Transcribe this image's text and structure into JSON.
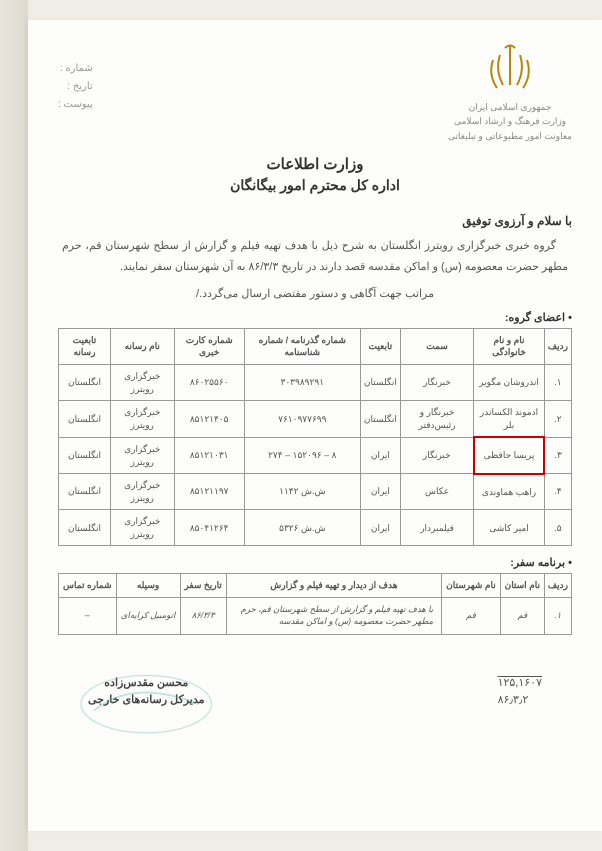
{
  "header": {
    "number_label": "شماره :",
    "date_label": "تاریخ :",
    "attach_label": "پیوست :",
    "country": "جمهوری اسلامی ایران",
    "ministry": "وزارت فرهنگ و ارشاد اسلامی",
    "dept": "معاونت امور مطبوعاتی و تبلیغاتی"
  },
  "title": {
    "line1": "وزارت اطلاعات",
    "line2": "اداره کل محترم امور بیگانگان"
  },
  "greeting": "با سلام و آرزوی توفیق",
  "body": {
    "p1": "گروه خبری خبرگزاری رویترز انگلستان به شرح ذیل با هدف تهیه فیلم و گزارش از سطح شهرستان قم، حرم مطهر حضرت معصومه (س) و اماکن مقدسه قصد دارند در تاریخ ۸۶/۳/۳ به آن شهرستان سفر نمایند.",
    "p2": "مراتب جهت آگاهی و دستور مقتضی ارسال می‌گردد./"
  },
  "section1_label": "• اعضای گروه:",
  "members": {
    "headers": {
      "row": "ردیف",
      "name": "نام و نام خانوادگی",
      "role": "سمت",
      "nationality": "تابعیت",
      "passport": "شماره گذرنامه / شماره شناسنامه",
      "press": "شماره کارت خبری",
      "media": "نام رسانه",
      "media_nat": "تابعیت رسانه"
    },
    "rows": [
      {
        "n": "۱.",
        "name": "اندروشان مگویر",
        "role": "خبرنگار",
        "nat": "انگلستان",
        "pass": "۳۰۳۹۸۹۲۹۱",
        "press": "۸۶۰۲۵۵۶۰",
        "media": "خبرگزاری رویترز",
        "mnat": "انگلستان"
      },
      {
        "n": "۲.",
        "name": "ادموند الکساندر بلر",
        "role": "خبرنگار و رئیس‌دفتر",
        "nat": "انگلستان",
        "pass": "۷۶۱۰۹۷۷۶۹۹",
        "press": "۸۵۱۲۱۴۰۵",
        "media": "خبرگزاری رویترز",
        "mnat": "انگلستان"
      },
      {
        "n": "۳.",
        "name": "پریسا حافظی",
        "role": "خبرنگار",
        "nat": "ایران",
        "pass": "۸ – ۱۵۲۰۹۶ – ۲۷۴",
        "press": "۸۵۱۲۱۰۳۱",
        "media": "خبرگزاری رویترز",
        "mnat": "انگلستان"
      },
      {
        "n": "۴.",
        "name": "راهب هماوندی",
        "role": "عکاس",
        "nat": "ایران",
        "pass": "ش.ش ۱۱۴۲",
        "press": "۸۵۱۲۱۱۹۷",
        "media": "خبرگزاری رویترز",
        "mnat": "انگلستان"
      },
      {
        "n": "۵.",
        "name": "امیر کاشی",
        "role": "فیلمبردار",
        "nat": "ایران",
        "pass": "ش.ش ۵۳۲۶",
        "press": "۸۵۰۴۱۲۶۴",
        "media": "خبرگزاری رویترز",
        "mnat": "انگلستان"
      }
    ]
  },
  "section2_label": "• برنامه سفر:",
  "trip": {
    "headers": {
      "row": "ردیف",
      "province": "نام استان",
      "city": "نام شهرستان",
      "purpose": "هدف از دیدار و تهیه فیلم و گزارش",
      "date": "تاریخ سفر",
      "vehicle": "وسیله",
      "contact": "شماره تماس"
    },
    "row": {
      "n": "۱.",
      "province": "قم",
      "city": "قم",
      "purpose": "با هدف تهیه فیلم و گزارش از سطح شهرستان قم، حرم مطهر حضرت معصومه (س) و اماکن مقدسه",
      "date": "۸۶/۳/۳",
      "vehicle": "اتومبیل کرایه‌ای",
      "contact": "–"
    }
  },
  "signature": {
    "name": "محسن مقدس‌زاده",
    "title": "مدیرکل رسانه‌های خارجی",
    "ref1": "۱۲۵,۱۶۰۷",
    "ref2": "۸۶٫۳٫۲"
  },
  "colors": {
    "emblem": "#b8860b",
    "highlight": "#c00000",
    "stamp": "#4aa89a"
  }
}
